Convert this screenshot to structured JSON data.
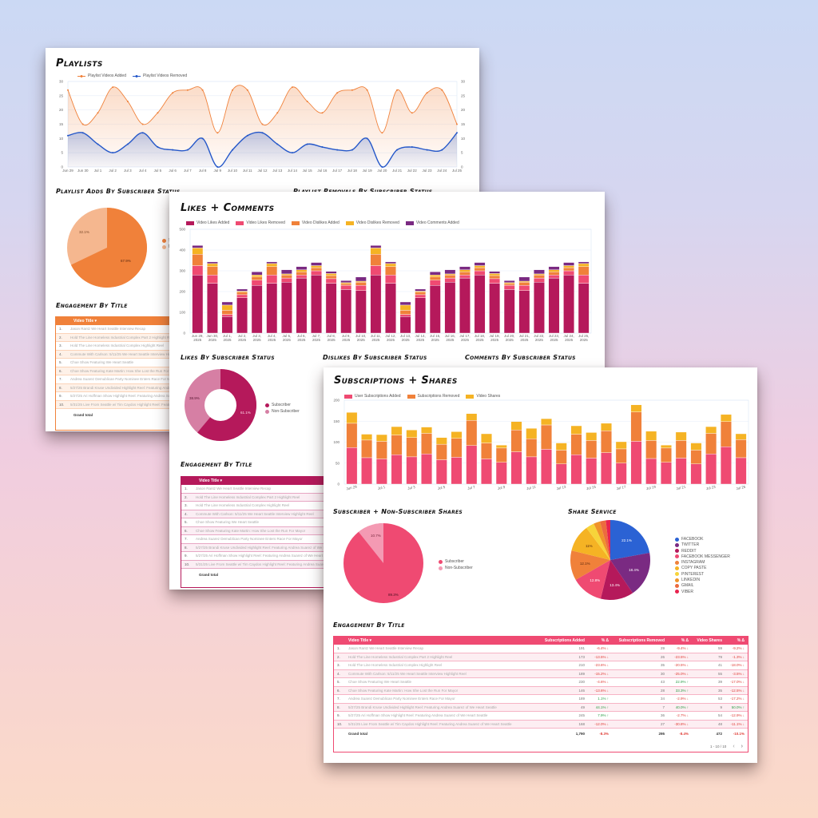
{
  "colors": {
    "background_top": "#cbd9f4",
    "background_bottom": "#fbdac8",
    "playlist_accent": "#f0813a",
    "likes_accent": "#b5195b",
    "subs_accent": "#ef4a72"
  },
  "playlists_panel": {
    "title": "Playlists",
    "legend": [
      "Playlist Videos Added",
      "Playlist Videos Removed"
    ],
    "adds_pie_title": "Playlist Adds By Subscriber Status",
    "removals_pie_title": "Playlist Removals By Subscriber Status",
    "pie_labels": {
      "subscriber": "67.9%",
      "non_subscriber": "32.1%"
    },
    "pie_legend": [
      "Subscriber",
      "Non-Subscriber"
    ],
    "table_title": "Engagement By Title",
    "table_header": "Video Title ▾",
    "grand_total": "Grand total"
  },
  "likes_panel": {
    "title": "Likes + Comments",
    "legend": [
      "Video Likes Added",
      "Video Likes Removed",
      "Video Dislikes Added",
      "Video Dislikes Removed",
      "Video Comments Added"
    ],
    "likes_pie_title": "Likes By Subscriber Status",
    "dislikes_pie_title": "Dislikes By Subscriber Status",
    "comments_pie_title": "Comments By Subscriber Status",
    "pie_labels": {
      "subscriber": "61.1%",
      "non_subscriber": "38.9%"
    },
    "pie_legend": [
      "Subscriber",
      "Non-Subscriber"
    ],
    "table_title": "Engagement By Title",
    "table_header": "Video Title ▾",
    "grand_total": "Grand total"
  },
  "subs_panel": {
    "title": "Subscriptions + Shares",
    "legend": [
      "User Subscriptions Added",
      "Subscriptions Removed",
      "Video Shares"
    ],
    "shares_pie_title": "Subscriber + Non-Subscriber Shares",
    "shares_pie_labels": {
      "subscriber": "89.3%",
      "non_subscriber": "10.7%"
    },
    "shares_pie_legend": [
      "Subscriber",
      "Non-Subscriber"
    ],
    "service_pie_title": "Share Service",
    "service_legend": [
      "FACEBOOK",
      "TWITTER",
      "REDDIT",
      "FACEBOOK MESSENGER",
      "INSTAGRAM",
      "COPY PASTE",
      "PINTEREST",
      "LINKEDIN",
      "GMAIL",
      "VIBER"
    ],
    "table_title": "Engagement By Title",
    "table_headers": [
      "Video Title ▾",
      "Subscriptions Added",
      "% Δ",
      "Subscriptions Removed",
      "% Δ",
      "Video Shares",
      "% Δ"
    ],
    "grand_total": {
      "label": "Grand total",
      "subs_added": "1,790",
      "subs_added_pct": "-8.3%",
      "subs_removed": "295",
      "subs_removed_pct": "-8.4%",
      "shares": "472",
      "shares_pct": "-10.1%"
    },
    "pagination": "1 - 10 / 10"
  },
  "video_titles": [
    "Jason Rantz We Heart Seattle Interview Recap",
    "Hold The Line Homeless Industrial Complex Part 2 Highlight Reel",
    "Hold The Line Homeless Industrial Complex Highlight Reel",
    "Commute With Carlson: 5/11/25 We Heart Seattle Interview Highlight Reel",
    "Choe Show Featuring We Heart Seattle",
    "Choe Show Featuring Kate Martin: How She Lost the Run For Mayor",
    "Andrea Suarez Demublican Party Nominee Enters Race For Mayor",
    "5/27/25 Brandi Kruse Undivided Highlight Reel: Featuring Andrea Suarez of We Heart Seattle",
    "5/27/25 Ari Hoffman Show Highlight Reel: Featuring Andrea Suarez of We Heart Seattle",
    "5/31/25 Live From Seattle w/ Tim Caydos Highlight Reel: Featuring Andrea Suarez of We Heart Seattle"
  ],
  "subs_table_rows": [
    {
      "added": "191",
      "added_pct": "-6.4%",
      "added_dir": "down",
      "removed": "29",
      "removed_pct": "-9.4%",
      "removed_dir": "down",
      "shares": "59",
      "shares_pct": "-9.2%",
      "shares_dir": "down"
    },
    {
      "added": "173",
      "added_pct": "-13.5%",
      "added_dir": "down",
      "removed": "26",
      "removed_pct": "-23.5%",
      "removed_dir": "down",
      "shares": "79",
      "shares_pct": "-1.3%",
      "shares_dir": "down"
    },
    {
      "added": "210",
      "added_pct": "-23.6%",
      "added_dir": "down",
      "removed": "35",
      "removed_pct": "-20.5%",
      "removed_dir": "down",
      "shares": "41",
      "shares_pct": "-18.0%",
      "shares_dir": "down"
    },
    {
      "added": "189",
      "added_pct": "-15.2%",
      "added_dir": "down",
      "removed": "30",
      "removed_pct": "-25.0%",
      "removed_dir": "down",
      "shares": "55",
      "shares_pct": "-3.5%",
      "shares_dir": "down"
    },
    {
      "added": "230",
      "added_pct": "-4.6%",
      "added_dir": "down",
      "removed": "43",
      "removed_pct": "22.9%",
      "removed_dir": "up",
      "shares": "39",
      "shares_pct": "-17.0%",
      "shares_dir": "down"
    },
    {
      "added": "146",
      "added_pct": "-13.6%",
      "added_dir": "down",
      "removed": "28",
      "removed_pct": "33.3%",
      "removed_dir": "up",
      "shares": "35",
      "shares_pct": "-12.5%",
      "shares_dir": "down"
    },
    {
      "added": "189",
      "added_pct": "1.1%",
      "added_dir": "up",
      "removed": "34",
      "removed_pct": "-2.9%",
      "removed_dir": "down",
      "shares": "53",
      "shares_pct": "-17.2%",
      "shares_dir": "down"
    },
    {
      "added": "49",
      "added_pct": "44.1%",
      "added_dir": "up",
      "removed": "7",
      "removed_pct": "40.0%",
      "removed_dir": "up",
      "shares": "9",
      "shares_pct": "50.0%",
      "shares_dir": "up"
    },
    {
      "added": "245",
      "added_pct": "7.9%",
      "added_dir": "up",
      "removed": "36",
      "removed_pct": "-2.7%",
      "removed_dir": "down",
      "shares": "54",
      "shares_pct": "-12.9%",
      "shares_dir": "down"
    },
    {
      "added": "168",
      "added_pct": "-12.0%",
      "added_dir": "down",
      "removed": "27",
      "removed_pct": "-30.8%",
      "removed_dir": "down",
      "shares": "48",
      "shares_pct": "-11.1%",
      "shares_dir": "down"
    }
  ],
  "chart_data": [
    {
      "type": "area",
      "title": "Playlists",
      "x": [
        "Jun 29",
        "Jun 30",
        "Jul 1",
        "Jul 2",
        "Jul 3",
        "Jul 4",
        "Jul 5",
        "Jul 6",
        "Jul 7",
        "Jul 8",
        "Jul 9",
        "Jul 10",
        "Jul 11",
        "Jul 12",
        "Jul 13",
        "Jul 14",
        "Jul 15",
        "Jul 16",
        "Jul 17",
        "Jul 18",
        "Jul 19",
        "Jul 20",
        "Jul 21",
        "Jul 22",
        "Jul 23",
        "Jul 24",
        "Jul 25"
      ],
      "series": [
        {
          "name": "Playlist Videos Added",
          "color": "#f0813a",
          "values": [
            27,
            15,
            19,
            28,
            23,
            15,
            19,
            26,
            27,
            27,
            12,
            27,
            27,
            15,
            19,
            28,
            23,
            19,
            26,
            27,
            27,
            12,
            27,
            19,
            26,
            27,
            15
          ]
        },
        {
          "name": "Playlist Videos Removed",
          "color": "#2457c9",
          "values": [
            11,
            12,
            8,
            5,
            8,
            12,
            7,
            6,
            6,
            10,
            0,
            6,
            11,
            12,
            8,
            5,
            8,
            7,
            6,
            6,
            10,
            0,
            6,
            7,
            6,
            6,
            12
          ]
        }
      ],
      "ylim": [
        0,
        30
      ],
      "yticks": [
        0,
        5,
        10,
        15,
        20,
        25,
        30
      ],
      "grid": true,
      "legend_position": "top"
    },
    {
      "type": "pie",
      "title": "Playlist Adds By Subscriber Status",
      "categories": [
        "Subscriber",
        "Non-Subscriber"
      ],
      "values": [
        67.9,
        32.1
      ],
      "colors": [
        "#f0813a",
        "#f5b78f"
      ]
    },
    {
      "type": "bar",
      "stacked": true,
      "title": "Likes + Comments",
      "categories": [
        "Jun 29, 2025",
        "Jun 30, 2025",
        "Jul 1, 2025",
        "Jul 2, 2025",
        "Jul 3, 2025",
        "Jul 4, 2025",
        "Jul 5, 2025",
        "Jul 6, 2025",
        "Jul 7, 2025",
        "Jul 8, 2025",
        "Jul 9, 2025",
        "Jul 10, 2025",
        "Jul 11, 2025",
        "Jul 12, 2025",
        "Jul 13, 2025",
        "Jul 14, 2025",
        "Jul 15, 2025",
        "Jul 16, 2025",
        "Jul 17, 2025",
        "Jul 18, 2025",
        "Jul 19, 2025",
        "Jul 20, 2025",
        "Jul 21, 2025",
        "Jul 22, 2025",
        "Jul 23, 2025",
        "Jul 24, 2025",
        "Jul 25, 2025"
      ],
      "series": [
        {
          "name": "Video Likes Added",
          "color": "#b5195b",
          "values": [
            280,
            240,
            80,
            170,
            230,
            240,
            245,
            265,
            280,
            240,
            210,
            205,
            280,
            240,
            80,
            170,
            230,
            245,
            265,
            280,
            240,
            210,
            205,
            245,
            265,
            280,
            240
          ]
        },
        {
          "name": "Video Likes Removed",
          "color": "#ef4a72",
          "values": [
            45,
            40,
            10,
            15,
            25,
            40,
            20,
            15,
            20,
            22,
            20,
            25,
            45,
            40,
            10,
            15,
            25,
            20,
            15,
            20,
            22,
            20,
            25,
            20,
            15,
            20,
            40
          ]
        },
        {
          "name": "Video Dislikes Added",
          "color": "#f0813a",
          "values": [
            55,
            40,
            20,
            12,
            15,
            40,
            15,
            15,
            15,
            15,
            8,
            15,
            55,
            40,
            20,
            12,
            15,
            15,
            15,
            15,
            15,
            8,
            15,
            15,
            15,
            15,
            40
          ]
        },
        {
          "name": "Video Dislikes Removed",
          "color": "#f5b324",
          "values": [
            30,
            15,
            25,
            5,
            10,
            15,
            5,
            10,
            10,
            10,
            5,
            5,
            30,
            15,
            25,
            5,
            10,
            5,
            10,
            10,
            10,
            5,
            5,
            5,
            10,
            10,
            15
          ]
        },
        {
          "name": "Video Comments Added",
          "color": "#7a2a82",
          "values": [
            12,
            8,
            15,
            10,
            15,
            8,
            20,
            15,
            15,
            10,
            10,
            20,
            12,
            8,
            15,
            10,
            15,
            20,
            15,
            15,
            10,
            10,
            20,
            20,
            15,
            15,
            8
          ]
        }
      ],
      "ylim": [
        0,
        500
      ],
      "yticks": [
        0,
        100,
        200,
        300,
        400,
        500
      ],
      "legend_position": "top"
    },
    {
      "type": "pie",
      "title": "Likes By Subscriber Status",
      "categories": [
        "Subscriber",
        "Non-Subscriber"
      ],
      "values": [
        61.1,
        38.9
      ],
      "colors": [
        "#b5195b",
        "#d67fa4"
      ]
    },
    {
      "type": "bar",
      "stacked": true,
      "title": "Subscriptions + Shares",
      "categories": [
        "Jun 29",
        "Jun 30",
        "Jul 1",
        "Jul 2",
        "Jul 3",
        "Jul 4",
        "Jul 5",
        "Jul 6",
        "Jul 7",
        "Jul 8",
        "Jul 9",
        "Jul 10",
        "Jul 11",
        "Jul 12",
        "Jul 13",
        "Jul 14",
        "Jul 15",
        "Jul 16",
        "Jul 17",
        "Jul 18",
        "Jul 19",
        "Jul 20",
        "Jul 21",
        "Jul 22",
        "Jul 23",
        "Jul 24",
        "Jul 25"
      ],
      "tick_labels_shown": [
        "Jun 29",
        "Jul 1",
        "Jul 3",
        "Jul 5",
        "Jul 7",
        "Jul 9",
        "Jul 11",
        "Jul 13",
        "Jul 15",
        "Jul 17",
        "Jul 19",
        "Jul 21",
        "Jul 23",
        "Jul 25"
      ],
      "series": [
        {
          "name": "User Subscriptions Added",
          "color": "#ef4a72",
          "values": [
            87,
            63,
            60,
            70,
            65,
            72,
            58,
            64,
            92,
            60,
            52,
            77,
            65,
            83,
            48,
            70,
            62,
            75,
            50,
            102,
            61,
            52,
            62,
            48,
            72,
            89,
            63
          ]
        },
        {
          "name": "Subscriptions Removed",
          "color": "#f0813a",
          "values": [
            58,
            42,
            42,
            47,
            46,
            49,
            37,
            45,
            60,
            38,
            34,
            52,
            43,
            58,
            33,
            49,
            42,
            52,
            34,
            70,
            43,
            34,
            42,
            33,
            49,
            60,
            43
          ]
        },
        {
          "name": "Video Shares",
          "color": "#f5b324",
          "values": [
            26,
            14,
            16,
            20,
            18,
            15,
            16,
            16,
            16,
            22,
            7,
            20,
            25,
            15,
            17,
            20,
            19,
            18,
            17,
            17,
            22,
            7,
            20,
            17,
            16,
            17,
            14
          ]
        }
      ],
      "ylim": [
        0,
        200
      ],
      "yticks": [
        0,
        50,
        100,
        150,
        200
      ],
      "legend_position": "top"
    },
    {
      "type": "pie",
      "title": "Subscriber + Non-Subscriber Shares",
      "categories": [
        "Subscriber",
        "Non-Subscriber"
      ],
      "values": [
        89.3,
        10.7
      ],
      "colors": [
        "#ef4a72",
        "#f49ab3"
      ]
    },
    {
      "type": "pie",
      "title": "Share Service",
      "categories": [
        "FACEBOOK",
        "TWITTER",
        "REDDIT",
        "FACEBOOK MESSENGER",
        "INSTAGRAM",
        "COPY PASTE",
        "PINTEREST",
        "LINKEDIN",
        "GMAIL",
        "VIBER"
      ],
      "values": [
        22.1,
        18.4,
        13.4,
        12.8,
        12.1,
        11.0,
        3.4,
        2.6,
        2.4,
        1.8
      ],
      "data_labels": [
        "22.1%",
        "18.4%",
        "13.4%",
        "12.8%",
        "12.1%",
        "11%",
        "",
        "",
        "",
        ""
      ],
      "colors": [
        "#2b62d4",
        "#7a2a82",
        "#b5195b",
        "#ef4a72",
        "#f0813a",
        "#f5b324",
        "#f7d43a",
        "#f0932a",
        "#ec6b3e",
        "#e8234e"
      ]
    }
  ]
}
